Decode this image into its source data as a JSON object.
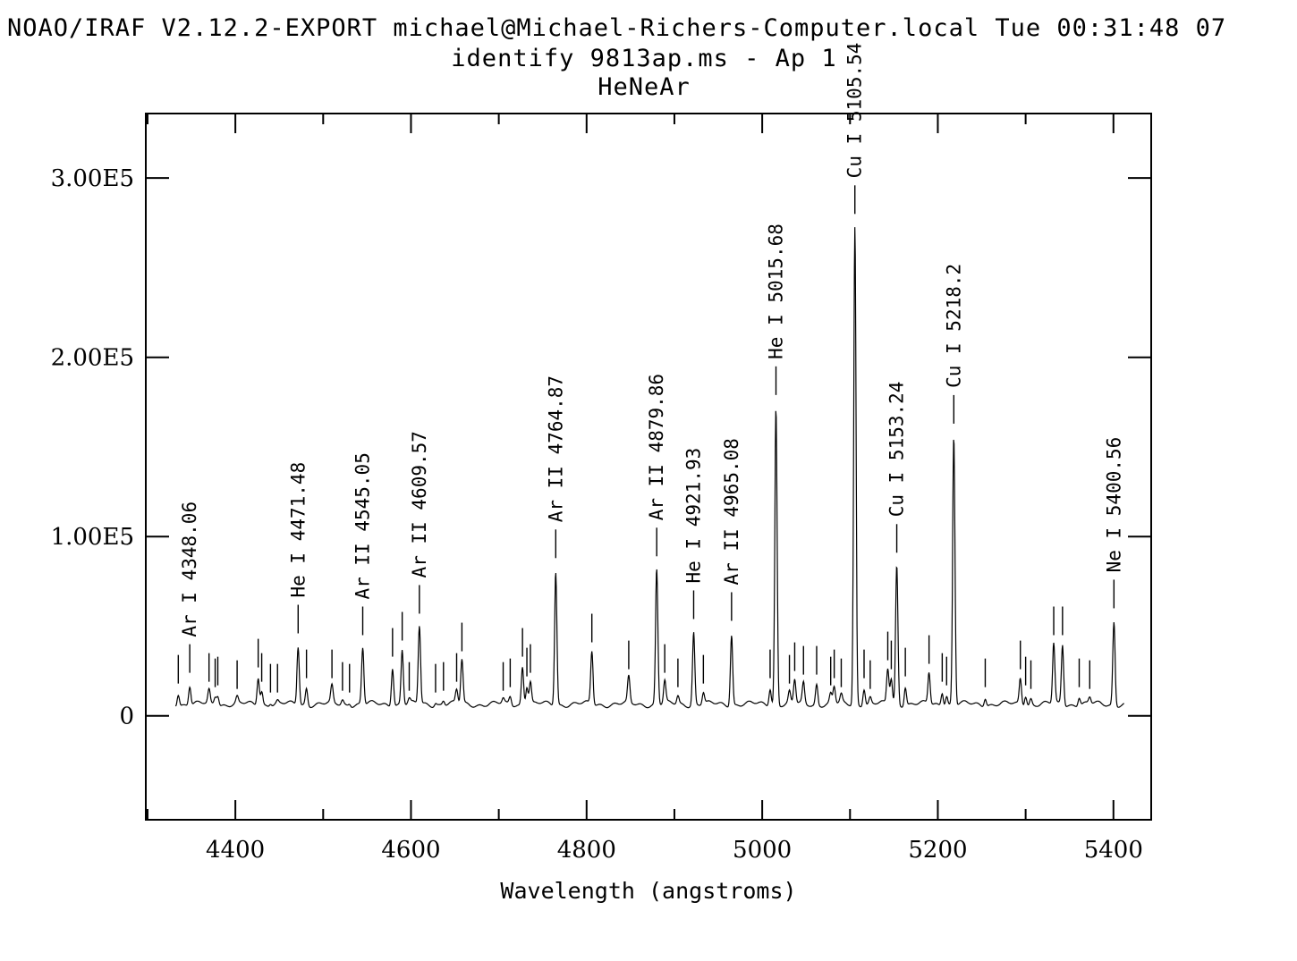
{
  "header": {
    "system_line": "NOAO/IRAF V2.12.2-EXPORT michael@Michael-Richers-Computer.local Tue 00:31:48 07",
    "subtitle": "identify 9813ap.ms - Ap 1",
    "title": "HeNeAr"
  },
  "chart_data": {
    "type": "line",
    "xlabel": "Wavelength (angstroms)",
    "ylabel": "",
    "xlim": [
      4298,
      5443
    ],
    "ylim": [
      -58000,
      336000
    ],
    "x_ticks": [
      4400,
      4600,
      4800,
      5000,
      5200,
      5400
    ],
    "x_tick_labels": [
      "4400",
      "4600",
      "4800",
      "5000",
      "5200",
      "5400"
    ],
    "y_ticks": [
      0,
      100000,
      200000,
      300000
    ],
    "y_tick_labels": [
      "0",
      "1.00E5",
      "2.00E5",
      "3.00E5"
    ],
    "continuum": 6500,
    "spectrum_range": [
      4332,
      5412
    ],
    "lines": [
      {
        "x": 4348.06,
        "peak": 17000,
        "label": "Ar I 4348.06"
      },
      {
        "x": 4471.48,
        "peak": 39000,
        "label": "He I 4471.48"
      },
      {
        "x": 4545.05,
        "peak": 38000,
        "label": "Ar II 4545.05"
      },
      {
        "x": 4609.57,
        "peak": 50000,
        "label": "Ar II 4609.57"
      },
      {
        "x": 4764.87,
        "peak": 81000,
        "label": "Ar II 4764.87"
      },
      {
        "x": 4879.86,
        "peak": 82000,
        "label": "Ar II 4879.86"
      },
      {
        "x": 4921.93,
        "peak": 47000,
        "label": "He I 4921.93"
      },
      {
        "x": 4965.08,
        "peak": 46000,
        "label": "Ar II 4965.08"
      },
      {
        "x": 5015.68,
        "peak": 172000,
        "label": "He I 5015.68"
      },
      {
        "x": 5105.54,
        "peak": 273000,
        "label": "Cu I 5105.54"
      },
      {
        "x": 5153.24,
        "peak": 84000,
        "label": "Cu I 5153.24"
      },
      {
        "x": 5218.2,
        "peak": 156000,
        "label": "Cu I 5218.2"
      },
      {
        "x": 5400.56,
        "peak": 53000,
        "label": "Ne I 5400.56"
      }
    ],
    "unlabeled_lines": [
      {
        "x": 4335,
        "peak": 13000
      },
      {
        "x": 4370,
        "peak": 14000
      },
      {
        "x": 4377,
        "peak": 11000
      },
      {
        "x": 4380,
        "peak": 12000
      },
      {
        "x": 4402,
        "peak": 10000
      },
      {
        "x": 4426,
        "peak": 22000
      },
      {
        "x": 4430,
        "peak": 14000
      },
      {
        "x": 4440,
        "peak": 8000
      },
      {
        "x": 4448,
        "peak": 8000
      },
      {
        "x": 4481,
        "peak": 16000
      },
      {
        "x": 4510,
        "peak": 16000
      },
      {
        "x": 4522,
        "peak": 9000
      },
      {
        "x": 4530,
        "peak": 8000
      },
      {
        "x": 4579,
        "peak": 28000
      },
      {
        "x": 4590,
        "peak": 37000
      },
      {
        "x": 4598,
        "peak": 9000
      },
      {
        "x": 4628,
        "peak": 8000
      },
      {
        "x": 4637,
        "peak": 9000
      },
      {
        "x": 4652,
        "peak": 14000
      },
      {
        "x": 4658,
        "peak": 31000
      },
      {
        "x": 4705,
        "peak": 9000
      },
      {
        "x": 4713,
        "peak": 11000
      },
      {
        "x": 4727,
        "peak": 28000
      },
      {
        "x": 4732,
        "peak": 17000
      },
      {
        "x": 4736,
        "peak": 19000
      },
      {
        "x": 4806,
        "peak": 36000
      },
      {
        "x": 4848,
        "peak": 21000
      },
      {
        "x": 4889,
        "peak": 19000
      },
      {
        "x": 4904,
        "peak": 11000
      },
      {
        "x": 4933,
        "peak": 13000
      },
      {
        "x": 5009,
        "peak": 16000
      },
      {
        "x": 5031,
        "peak": 13000
      },
      {
        "x": 5037,
        "peak": 20000
      },
      {
        "x": 5047,
        "peak": 18000
      },
      {
        "x": 5062,
        "peak": 18000
      },
      {
        "x": 5078,
        "peak": 12000
      },
      {
        "x": 5082,
        "peak": 16000
      },
      {
        "x": 5090,
        "peak": 11000
      },
      {
        "x": 5116,
        "peak": 16000
      },
      {
        "x": 5123,
        "peak": 10000
      },
      {
        "x": 5143,
        "peak": 26000
      },
      {
        "x": 5147,
        "peak": 21000
      },
      {
        "x": 5163,
        "peak": 17000
      },
      {
        "x": 5190,
        "peak": 24000
      },
      {
        "x": 5205,
        "peak": 14000
      },
      {
        "x": 5210,
        "peak": 12000
      },
      {
        "x": 5254,
        "peak": 11000
      },
      {
        "x": 5294,
        "peak": 21000
      },
      {
        "x": 5300,
        "peak": 12000
      },
      {
        "x": 5306,
        "peak": 10000
      },
      {
        "x": 5332,
        "peak": 40000
      },
      {
        "x": 5342,
        "peak": 40000
      },
      {
        "x": 5361,
        "peak": 11000
      },
      {
        "x": 5373,
        "peak": 10000
      }
    ],
    "grid": false,
    "legend": "none"
  }
}
